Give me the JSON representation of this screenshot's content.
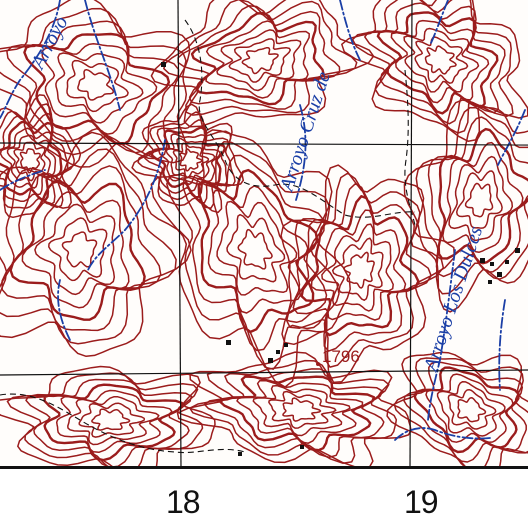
{
  "map": {
    "stream_labels": {
      "arroyo_top_left": "Arroyo",
      "arroyo_cruz": "Arroyo Cruz de",
      "arroyo_los_dulces": "Arroyo Los Dulces"
    },
    "spot_elevation": "1796",
    "easting_labels": [
      "18",
      "19"
    ],
    "colors": {
      "contour": "#9b1c1c",
      "water": "#1b3fa6",
      "grid": "#111111",
      "trail": "#111111"
    }
  }
}
